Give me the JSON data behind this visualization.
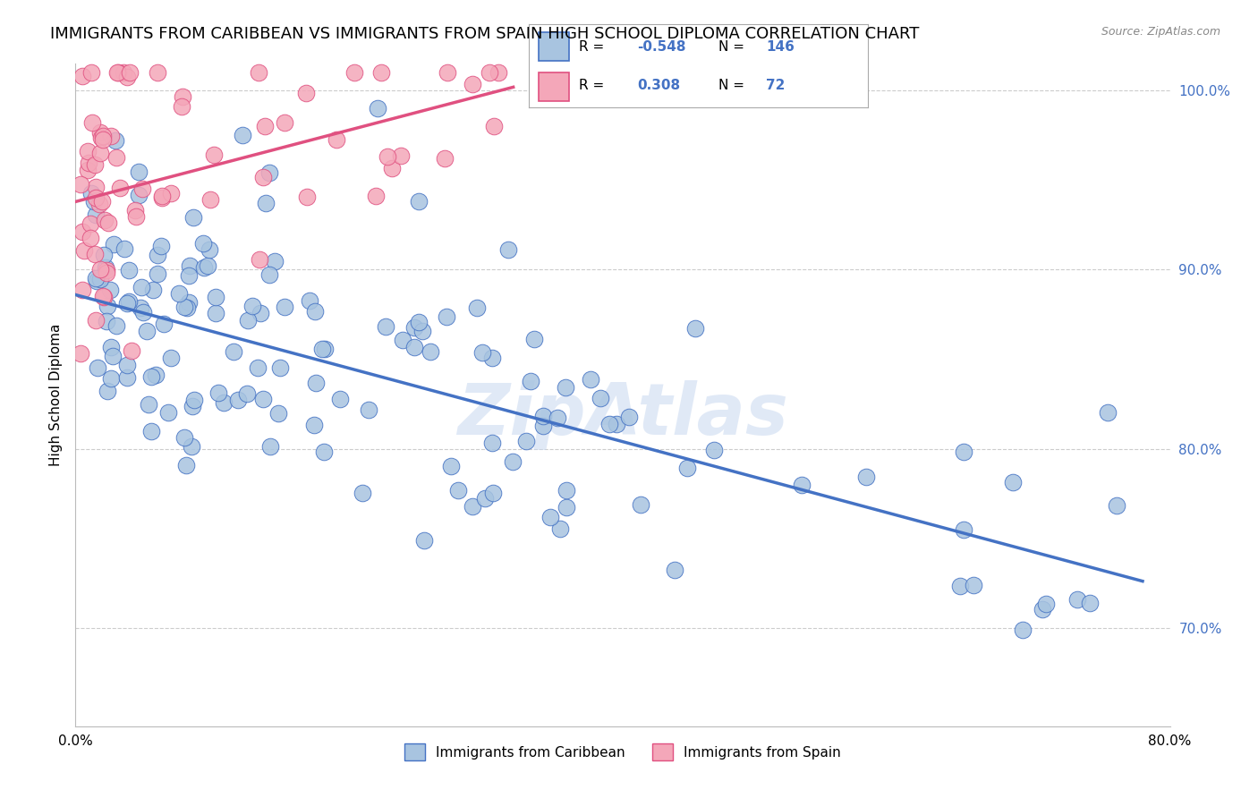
{
  "title": "IMMIGRANTS FROM CARIBBEAN VS IMMIGRANTS FROM SPAIN HIGH SCHOOL DIPLOMA CORRELATION CHART",
  "source": "Source: ZipAtlas.com",
  "ylabel": "High School Diploma",
  "xlim": [
    0.0,
    0.8
  ],
  "ylim": [
    0.645,
    1.015
  ],
  "xticks": [
    0.0,
    0.8
  ],
  "xticklabels": [
    "0.0%",
    "80.0%"
  ],
  "yticks_right": [
    0.7,
    0.8,
    0.9,
    1.0
  ],
  "yticklabels_right": [
    "70.0%",
    "80.0%",
    "90.0%",
    "100.0%"
  ],
  "legend_r1": "-0.548",
  "legend_n1": "146",
  "legend_r2": "0.308",
  "legend_n2": "72",
  "color_caribbean": "#a8c4e0",
  "color_spain": "#f4a7b9",
  "line_color_caribbean": "#4472c4",
  "line_color_spain": "#e05080",
  "watermark": "ZipAtlas",
  "watermark_color": "#c8d8f0",
  "label_caribbean": "Immigrants from Caribbean",
  "label_spain": "Immigrants from Spain",
  "blue_line_x": [
    0.0,
    0.78
  ],
  "blue_line_y": [
    0.886,
    0.726
  ],
  "pink_line_x": [
    0.0,
    0.32
  ],
  "pink_line_y": [
    0.938,
    1.002
  ],
  "grid_color": "#cccccc",
  "title_fontsize": 13,
  "axis_label_fontsize": 11,
  "tick_fontsize": 11,
  "caribbean_seed": 42,
  "spain_seed": 7
}
